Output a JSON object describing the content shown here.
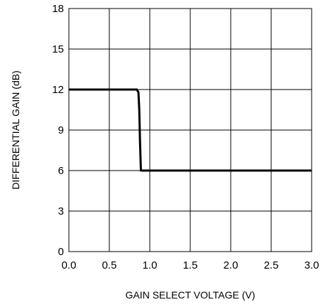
{
  "chart_data": {
    "type": "line",
    "title": "",
    "xlabel": "GAIN SELECT VOLTAGE (V)",
    "ylabel": "DIFFERENTIAL GAIN (dB)",
    "xlim": [
      0.0,
      3.0
    ],
    "ylim": [
      0,
      18
    ],
    "x_ticks": [
      "0.0",
      "0.5",
      "1.0",
      "1.5",
      "2.0",
      "2.5",
      "3.0"
    ],
    "y_ticks": [
      "0",
      "3",
      "6",
      "9",
      "12",
      "15",
      "18"
    ],
    "grid": true,
    "legend": "none",
    "series": [
      {
        "x": [
          0.0,
          0.84,
          0.86,
          0.87,
          0.88,
          0.89,
          3.0
        ],
        "y": [
          12,
          12,
          11.8,
          10.5,
          8,
          6,
          6
        ]
      }
    ]
  }
}
